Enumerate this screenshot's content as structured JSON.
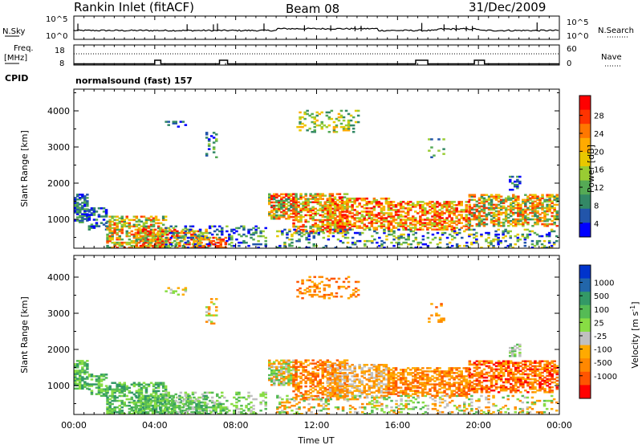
{
  "header": {
    "station": "Rankin Inlet (fitACF)",
    "beam": "Beam 08",
    "date": "31/Dec/2009"
  },
  "chart_data": [
    {
      "type": "line",
      "panel": "noise",
      "left_label": "N.Sky",
      "right_label": "N.Search",
      "left_ticks": [
        "10^5",
        "10^0"
      ],
      "right_ticks": [
        "10^5",
        "10^0"
      ],
      "x_ticks": [
        "00:00",
        "04:00",
        "08:00",
        "12:00",
        "16:00",
        "20:00",
        "00:00"
      ],
      "series_sky_level": 0.35,
      "spike_hours": [
        0.2,
        5.6,
        6.9,
        7.1,
        9.4,
        11.4,
        12.7,
        13.9,
        14.2,
        17.2,
        18.3,
        18.9,
        19.4,
        19.7,
        22.9
      ]
    },
    {
      "type": "line",
      "panel": "frequency",
      "left_label": "Freq.",
      "left_unit": "[MHz]",
      "left_ticks": [
        "18",
        "8"
      ],
      "right_label": "Nave",
      "right_ticks": [
        "60",
        "0"
      ],
      "freq_steps": [
        {
          "from": 0,
          "to": 4.0,
          "value": 8.6
        },
        {
          "from": 4.0,
          "to": 4.3,
          "value": 10.4
        },
        {
          "from": 4.3,
          "to": 7.2,
          "value": 8.6
        },
        {
          "from": 7.2,
          "to": 7.6,
          "value": 10.4
        },
        {
          "from": 7.6,
          "to": 16.9,
          "value": 8.6
        },
        {
          "from": 16.9,
          "to": 17.5,
          "value": 10.4
        },
        {
          "from": 17.5,
          "to": 19.8,
          "value": 8.6
        },
        {
          "from": 19.8,
          "to": 20.3,
          "value": 10.4
        },
        {
          "from": 20.3,
          "to": 24.0,
          "value": 8.6
        }
      ]
    },
    {
      "type": "heatmap",
      "panel": "power",
      "cpid_label": "CPID",
      "cpid_text": "normalsound (fast) 157",
      "ylabel": "Slant Range [km]",
      "y_ticks": [
        1000,
        2000,
        3000,
        4000
      ],
      "ylim": [
        200,
        4600
      ],
      "xlim": [
        0,
        24
      ],
      "x_ticks": [
        "00:00",
        "04:00",
        "08:00",
        "12:00",
        "16:00",
        "20:00",
        "00:00"
      ],
      "colorbar_label": "Power [dB]",
      "colorbar_ticks": [
        "28",
        "24",
        "20",
        "16",
        "12",
        "8",
        "4"
      ],
      "colorbar_colors": [
        "#ff0000",
        "#ff3300",
        "#ff7700",
        "#ffaa00",
        "#e8c800",
        "#99cc33",
        "#55aa55",
        "#338866",
        "#2255aa",
        "#0000ff"
      ]
    },
    {
      "type": "heatmap",
      "panel": "velocity",
      "ylabel": "Slant Range [km]",
      "y_ticks": [
        1000,
        2000,
        3000,
        4000
      ],
      "ylim": [
        200,
        4600
      ],
      "xlim": [
        0,
        24
      ],
      "x_ticks": [
        "00:00",
        "04:00",
        "08:00",
        "12:00",
        "16:00",
        "20:00",
        "00:00"
      ],
      "xlabel": "Time UT",
      "colorbar_label": "Velocity",
      "colorbar_unit": "[m s",
      "colorbar_unit_sup": "-1",
      "colorbar_unit_end": "]",
      "colorbar_ticks": [
        "1000",
        "500",
        "100",
        "25",
        "-25",
        "-100",
        "-500",
        "-1000"
      ],
      "colorbar_colors": [
        "#0033cc",
        "#2266aa",
        "#339966",
        "#55bb55",
        "#88dd44",
        "#c0c0c0",
        "#ffaa00",
        "#ff8800",
        "#ff5500",
        "#ff0000"
      ]
    }
  ]
}
